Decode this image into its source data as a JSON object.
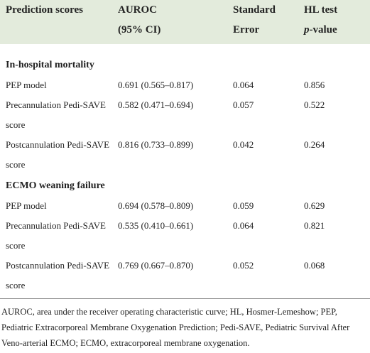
{
  "header": [
    [
      "Prediction scores"
    ],
    [
      "AUROC",
      "(95% CI)"
    ],
    [
      "Standard",
      "Error"
    ],
    [
      "HL test",
      "p-value"
    ]
  ],
  "sections": [
    {
      "title": "In-hospital mortality",
      "rows": [
        [
          "PEP model",
          "0.691 (0.565–0.817)",
          "0.064",
          "0.856"
        ],
        [
          "Precannulation Pedi-SAVE score",
          "0.582 (0.471–0.694)",
          "0.057",
          "0.522"
        ],
        [
          "Postcannulation Pedi-SAVE score",
          "0.816 (0.733–0.899)",
          "0.042",
          "0.264"
        ]
      ]
    },
    {
      "title": "ECMO weaning failure",
      "rows": [
        [
          "PEP model",
          "0.694 (0.578–0.809)",
          "0.059",
          "0.629"
        ],
        [
          "Precannulation Pedi-SAVE score",
          "0.535 (0.410–0.661)",
          "0.064",
          "0.821"
        ],
        [
          "Postcannulation Pedi-SAVE score",
          "0.769 (0.667–0.870)",
          "0.052",
          "0.068"
        ]
      ]
    }
  ],
  "footnote": "AUROC, area under the receiver operating characteristic curve; HL, Hosmer-Lemeshow; PEP, Pediatric Extracorporeal Membrane Oxygenation Prediction; Pedi-SAVE, Pediatric Survival After Veno-arterial ECMO; ECMO, extracorporeal membrane oxygenation."
}
